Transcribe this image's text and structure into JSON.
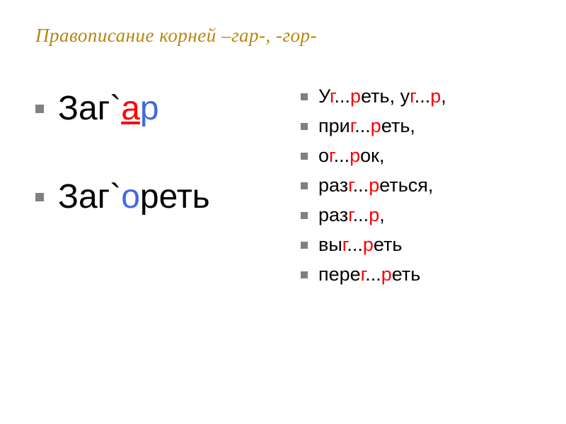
{
  "title": "Правописание     корней        –гар-,  -гор-",
  "title_color": "#b8860b",
  "title_fontsize": 27,
  "examples": [
    {
      "parts": [
        {
          "text": "Заг`",
          "color": "black"
        },
        {
          "text": "а",
          "color": "red",
          "underline": true
        },
        {
          "text": "р",
          "color": "blue"
        }
      ]
    },
    {
      "parts": [
        {
          "text": "Заг`",
          "color": "black"
        },
        {
          "text": "о",
          "color": "blue"
        },
        {
          "text": "реть",
          "color": "black"
        }
      ]
    }
  ],
  "exercises": [
    {
      "parts": [
        {
          "text": "У",
          "color": "black"
        },
        {
          "text": "г",
          "color": "red"
        },
        {
          "text": "...",
          "color": "black"
        },
        {
          "text": "р",
          "color": "red"
        },
        {
          "text": "еть, у",
          "color": "black"
        },
        {
          "text": "г",
          "color": "red"
        },
        {
          "text": "...",
          "color": "black"
        },
        {
          "text": "р",
          "color": "red"
        },
        {
          "text": ",",
          "color": "black"
        }
      ]
    },
    {
      "parts": [
        {
          "text": "при",
          "color": "black"
        },
        {
          "text": "г",
          "color": "red"
        },
        {
          "text": "...",
          "color": "black"
        },
        {
          "text": "р",
          "color": "red"
        },
        {
          "text": "еть,",
          "color": "black"
        }
      ]
    },
    {
      "parts": [
        {
          "text": "о",
          "color": "black"
        },
        {
          "text": "г",
          "color": "red"
        },
        {
          "text": "...",
          "color": "black"
        },
        {
          "text": "р",
          "color": "red"
        },
        {
          "text": "ок,",
          "color": "black"
        }
      ]
    },
    {
      "parts": [
        {
          "text": "раз",
          "color": "black"
        },
        {
          "text": "г",
          "color": "red"
        },
        {
          "text": "...",
          "color": "black"
        },
        {
          "text": "р",
          "color": "red"
        },
        {
          "text": "еться,",
          "color": "black"
        }
      ]
    },
    {
      "parts": [
        {
          "text": "раз",
          "color": "black"
        },
        {
          "text": "г",
          "color": "red"
        },
        {
          "text": "...",
          "color": "black"
        },
        {
          "text": "р",
          "color": "red"
        },
        {
          "text": ",",
          "color": "black"
        }
      ]
    },
    {
      "parts": [
        {
          "text": "вы",
          "color": "black"
        },
        {
          "text": "г",
          "color": "red"
        },
        {
          "text": "...",
          "color": "black"
        },
        {
          "text": "р",
          "color": "red"
        },
        {
          "text": "еть",
          "color": "black"
        }
      ]
    },
    {
      "parts": [
        {
          "text": "пере",
          "color": "black"
        },
        {
          "text": "г",
          "color": "red"
        },
        {
          "text": "...",
          "color": "black"
        },
        {
          "text": "р",
          "color": "red"
        },
        {
          "text": "еть",
          "color": "black"
        }
      ]
    }
  ],
  "bullet_color": "#808080",
  "background_color": "#ffffff",
  "example_fontsize": 48,
  "exercise_fontsize": 27
}
